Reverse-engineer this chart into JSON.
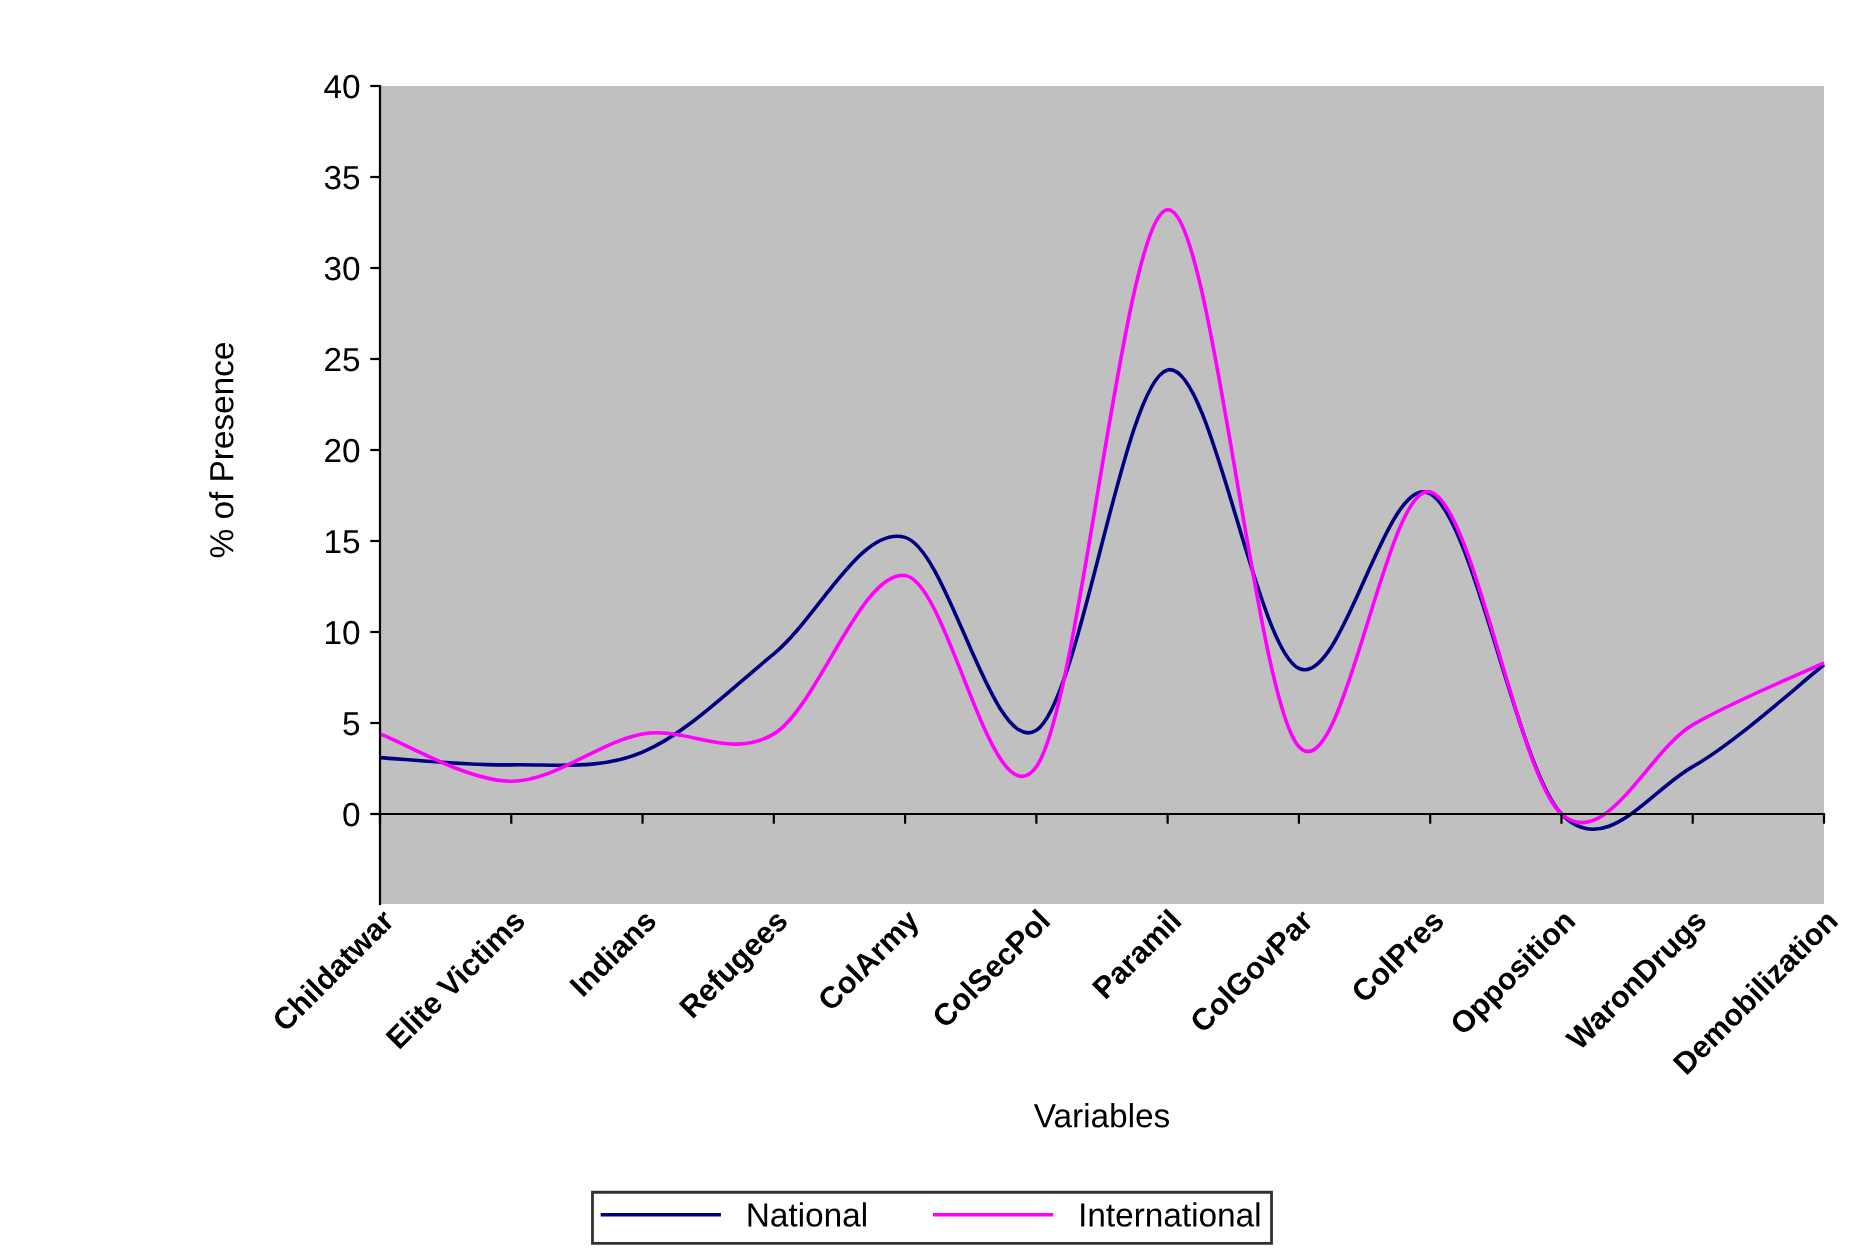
{
  "chart_data": {
    "type": "line",
    "xlabel": "Variables",
    "ylabel": "% of Presence",
    "categories": [
      "Childatwar",
      "Elite Victims",
      "Indians",
      "Refugees",
      "ColArmy",
      "ColSecPol",
      "Paramil",
      "ColGovPar",
      "ColPres",
      "Opposition",
      "WaronDrugs",
      "Demobilization"
    ],
    "series": [
      {
        "name": "National",
        "color": "#000080",
        "values": [
          3.1,
          2.7,
          3.4,
          8.8,
          15.2,
          4.6,
          24.4,
          8.0,
          17.6,
          0,
          2.6,
          8.2
        ]
      },
      {
        "name": "International",
        "color": "#ff00ff",
        "values": [
          4.4,
          1.8,
          4.4,
          4.4,
          13.1,
          2.6,
          33.2,
          3.7,
          17.7,
          0,
          4.9,
          8.3
        ]
      }
    ],
    "ylim": [
      0,
      40
    ],
    "yticks": [
      0,
      5,
      10,
      15,
      20,
      25,
      30,
      35,
      40
    ],
    "grid": false,
    "legend": "bottom",
    "marker": "none",
    "line_style": "solid"
  }
}
